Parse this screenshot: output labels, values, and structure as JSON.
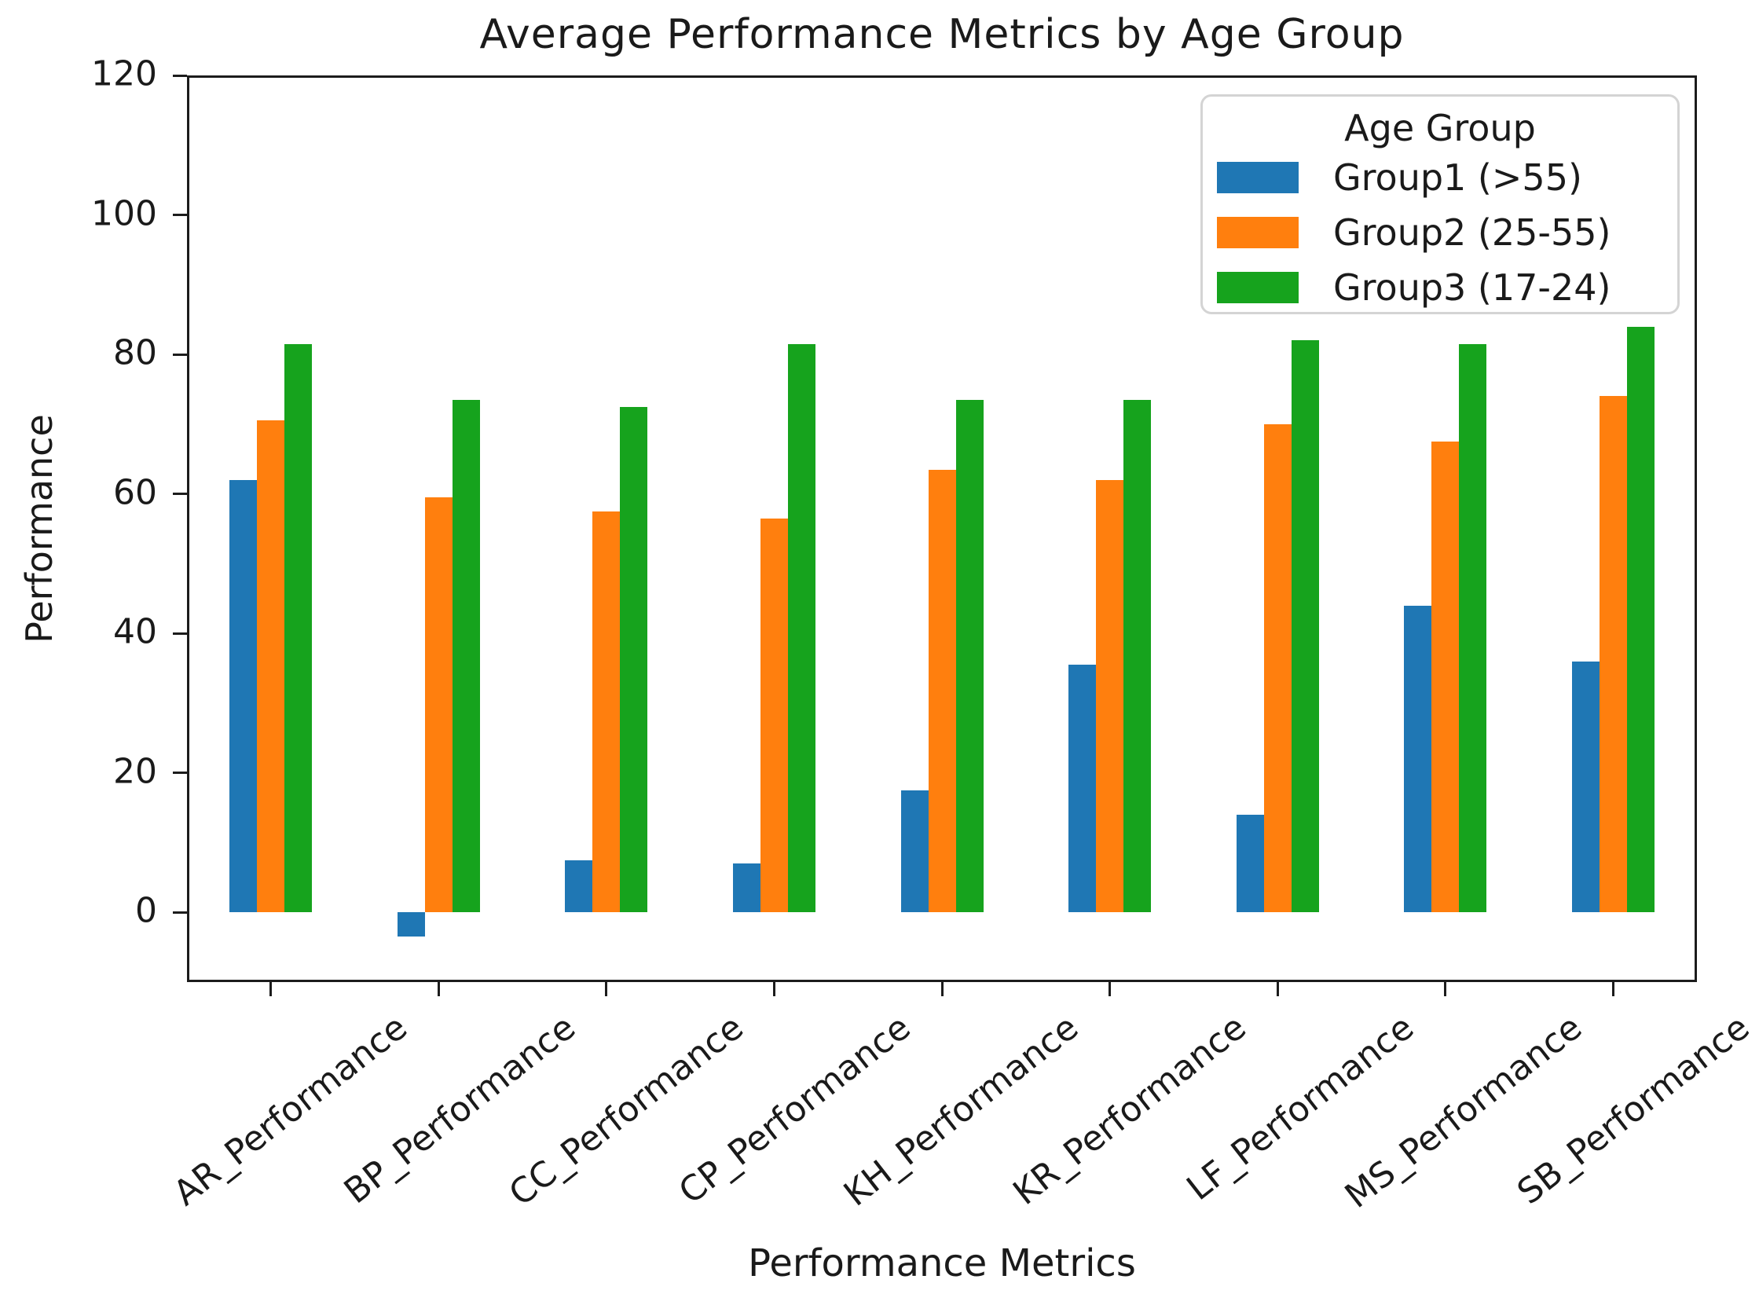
{
  "title": "Average Performance Metrics by Age Group",
  "xlabel": "Performance Metrics",
  "ylabel": "Performance",
  "legend": {
    "title": "Age Group",
    "entries": [
      "Group1 (>55)",
      "Group2 (25-55)",
      "Group3 (17-24)"
    ]
  },
  "colors": {
    "group1_blue": "#1f77b4",
    "group2_orange": "#ff7f0e",
    "group3_green": "#16a31d",
    "axis": "#1c1c1c",
    "legend_border": "#d4d4d4"
  },
  "chart_data": {
    "type": "bar",
    "title": "Average Performance Metrics by Age Group",
    "xlabel": "Performance Metrics",
    "ylabel": "Performance",
    "categories": [
      "AR_Performance",
      "BP_Performance",
      "CC_Performance",
      "CP_Performance",
      "KH_Performance",
      "KR_Performance",
      "LF_Performance",
      "MS_Performance",
      "SB_Performance"
    ],
    "series": [
      {
        "name": "Group1 (>55)",
        "color": "#1f77b4",
        "values": [
          62,
          -3.5,
          7.5,
          7,
          17.5,
          35.5,
          14,
          44,
          36
        ]
      },
      {
        "name": "Group2 (25-55)",
        "color": "#ff7f0e",
        "values": [
          70.5,
          59.5,
          57.5,
          56.5,
          63.5,
          62,
          70,
          67.5,
          74
        ]
      },
      {
        "name": "Group3 (17-24)",
        "color": "#16a31d",
        "values": [
          81.5,
          73.5,
          72.5,
          81.5,
          73.5,
          73.5,
          82,
          81.5,
          84
        ]
      }
    ],
    "ylim": [
      -10,
      120
    ],
    "yticks": [
      0,
      20,
      40,
      60,
      80,
      100,
      120
    ],
    "xtick_rotation": 45,
    "legend_title": "Age Group",
    "legend_position": "upper right",
    "grid": false
  }
}
